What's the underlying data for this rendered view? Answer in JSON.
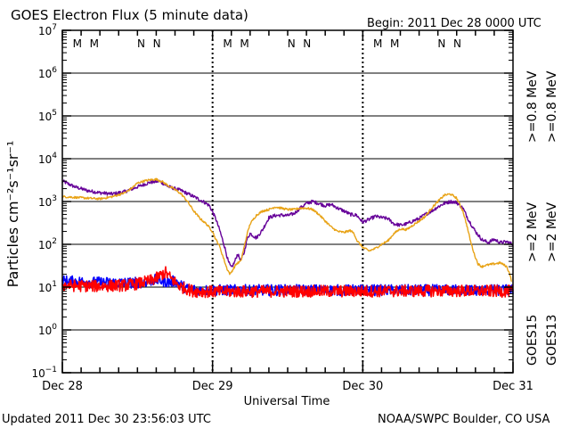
{
  "header": {
    "title": "GOES Electron Flux (5 minute data)",
    "begin": "Begin: 2011 Dec 28 0000 UTC"
  },
  "footer": {
    "updated": "Updated 2011 Dec 30 23:56:03 UTC",
    "credit": "NOAA/SWPC Boulder, CO USA"
  },
  "colors": {
    "goes13_gt2": "#ff0000",
    "goes15_gt2": "#0000ff",
    "goes13_gt08": "#e8a317",
    "goes15_gt08": "#660099",
    "marker_m": "#ff0000",
    "marker_n": "#0000ff"
  },
  "chart_data": {
    "type": "line",
    "title": "GOES Electron Flux (5 minute data)",
    "xlabel": "Universal Time",
    "ylabel": "Particles cm⁻²s⁻¹sr⁻¹",
    "y_scale": "log",
    "ylim": [
      0.1,
      10000000
    ],
    "y_ticks": [
      {
        "value": 0.1,
        "base": "10",
        "exp": "−1"
      },
      {
        "value": 1,
        "base": "10",
        "exp": "0"
      },
      {
        "value": 10,
        "base": "10",
        "exp": "1"
      },
      {
        "value": 100,
        "base": "10",
        "exp": "2"
      },
      {
        "value": 1000,
        "base": "10",
        "exp": "3"
      },
      {
        "value": 10000,
        "base": "10",
        "exp": "4"
      },
      {
        "value": 100000,
        "base": "10",
        "exp": "5"
      },
      {
        "value": 1000000,
        "base": "10",
        "exp": "6"
      },
      {
        "value": 10000000,
        "base": "10",
        "exp": "7"
      }
    ],
    "xlim_hours": [
      0,
      72
    ],
    "x_ticks": [
      {
        "hour": 0,
        "label": "Dec 28"
      },
      {
        "hour": 24,
        "label": "Dec 29"
      },
      {
        "hour": 48,
        "label": "Dec 30"
      },
      {
        "hour": 72,
        "label": "Dec 31"
      }
    ],
    "threshold": 1000,
    "day_markers": [
      {
        "hour": 2.4,
        "label": "M",
        "kind": "m"
      },
      {
        "hour": 5.1,
        "label": "M",
        "kind": "m"
      },
      {
        "hour": 12.6,
        "label": "N",
        "kind": "n"
      },
      {
        "hour": 15.1,
        "label": "N",
        "kind": "n"
      },
      {
        "hour": 26.4,
        "label": "M",
        "kind": "m"
      },
      {
        "hour": 29.1,
        "label": "M",
        "kind": "m"
      },
      {
        "hour": 36.6,
        "label": "N",
        "kind": "n"
      },
      {
        "hour": 39.1,
        "label": "N",
        "kind": "n"
      },
      {
        "hour": 50.4,
        "label": "M",
        "kind": "m"
      },
      {
        "hour": 53.1,
        "label": "M",
        "kind": "m"
      },
      {
        "hour": 60.6,
        "label": "N",
        "kind": "n"
      },
      {
        "hour": 63.1,
        "label": "N",
        "kind": "n"
      }
    ],
    "legend": [
      {
        "label": ">=0.8 MeV",
        "color_key": "goes15_gt08"
      },
      {
        "label": ">=0.8 MeV",
        "color_key": "goes13_gt08"
      },
      {
        "label": ">=2 MeV",
        "color_key": "goes15_gt2"
      },
      {
        "label": ">=2 MeV",
        "color_key": "goes13_gt2"
      },
      {
        "label": "GOES15",
        "color_key": ""
      },
      {
        "label": "GOES13",
        "color_key": ""
      }
    ],
    "series": [
      {
        "name": "GOES15 >=0.8 MeV",
        "color_key": "goes15_gt08",
        "noise": 0.04,
        "points": [
          [
            0,
            3000
          ],
          [
            2,
            2200
          ],
          [
            4,
            1800
          ],
          [
            6,
            1600
          ],
          [
            8,
            1500
          ],
          [
            10,
            1700
          ],
          [
            12,
            2200
          ],
          [
            14,
            2800
          ],
          [
            15.5,
            3000
          ],
          [
            17,
            2200
          ],
          [
            19,
            1800
          ],
          [
            21,
            1300
          ],
          [
            22.5,
            1000
          ],
          [
            23.5,
            800
          ],
          [
            24.5,
            400
          ],
          [
            25.2,
            200
          ],
          [
            26,
            80
          ],
          [
            26.5,
            40
          ],
          [
            27,
            28
          ],
          [
            27.5,
            38
          ],
          [
            28,
            60
          ],
          [
            28.5,
            42
          ],
          [
            29,
            60
          ],
          [
            29.5,
            130
          ],
          [
            30,
            180
          ],
          [
            31,
            140
          ],
          [
            32,
            220
          ],
          [
            33,
            420
          ],
          [
            34,
            470
          ],
          [
            35,
            480
          ],
          [
            36,
            470
          ],
          [
            37,
            520
          ],
          [
            38,
            700
          ],
          [
            39,
            900
          ],
          [
            40,
            1000
          ],
          [
            41,
            900
          ],
          [
            42,
            800
          ],
          [
            43,
            850
          ],
          [
            44,
            700
          ],
          [
            45,
            600
          ],
          [
            46,
            500
          ],
          [
            47,
            480
          ],
          [
            48,
            330
          ],
          [
            49,
            380
          ],
          [
            50,
            450
          ],
          [
            51,
            420
          ],
          [
            52,
            400
          ],
          [
            53,
            300
          ],
          [
            54,
            280
          ],
          [
            55,
            300
          ],
          [
            56,
            350
          ],
          [
            57,
            400
          ],
          [
            58,
            500
          ],
          [
            59,
            600
          ],
          [
            60,
            750
          ],
          [
            61,
            900
          ],
          [
            62,
            1000
          ],
          [
            63,
            950
          ],
          [
            64,
            700
          ],
          [
            65,
            350
          ],
          [
            66,
            200
          ],
          [
            67,
            130
          ],
          [
            68,
            110
          ],
          [
            69,
            130
          ],
          [
            70,
            110
          ],
          [
            71,
            115
          ],
          [
            72,
            100
          ]
        ]
      },
      {
        "name": "GOES13 >=0.8 MeV",
        "color_key": "goes13_gt08",
        "noise": 0.025,
        "points": [
          [
            0,
            1300
          ],
          [
            2,
            1250
          ],
          [
            4,
            1200
          ],
          [
            6,
            1150
          ],
          [
            8,
            1300
          ],
          [
            10,
            1600
          ],
          [
            11,
            2000
          ],
          [
            12,
            2700
          ],
          [
            13,
            3000
          ],
          [
            14,
            3200
          ],
          [
            15,
            3300
          ],
          [
            16,
            2900
          ],
          [
            17,
            2300
          ],
          [
            18,
            1900
          ],
          [
            19,
            1500
          ],
          [
            20,
            1000
          ],
          [
            21,
            600
          ],
          [
            22,
            400
          ],
          [
            23,
            300
          ],
          [
            24,
            200
          ],
          [
            24.5,
            130
          ],
          [
            25,
            100
          ],
          [
            25.7,
            50
          ],
          [
            26.3,
            27
          ],
          [
            26.8,
            20
          ],
          [
            27.2,
            25
          ],
          [
            27.8,
            35
          ],
          [
            28.5,
            40
          ],
          [
            29,
            80
          ],
          [
            29.5,
            170
          ],
          [
            30,
            300
          ],
          [
            31,
            480
          ],
          [
            32,
            600
          ],
          [
            33,
            650
          ],
          [
            34,
            750
          ],
          [
            35,
            700
          ],
          [
            36,
            650
          ],
          [
            37,
            650
          ],
          [
            38,
            700
          ],
          [
            39,
            700
          ],
          [
            40,
            650
          ],
          [
            41,
            500
          ],
          [
            42,
            350
          ],
          [
            43,
            250
          ],
          [
            44,
            200
          ],
          [
            45,
            190
          ],
          [
            46,
            210
          ],
          [
            46.6,
            180
          ],
          [
            47.1,
            120
          ],
          [
            48,
            85
          ],
          [
            49,
            70
          ],
          [
            50,
            80
          ],
          [
            51,
            100
          ],
          [
            52,
            120
          ],
          [
            53,
            180
          ],
          [
            54,
            230
          ],
          [
            55,
            220
          ],
          [
            56,
            280
          ],
          [
            57,
            350
          ],
          [
            58,
            450
          ],
          [
            59,
            700
          ],
          [
            60,
            1000
          ],
          [
            61,
            1400
          ],
          [
            62,
            1500
          ],
          [
            63,
            1200
          ],
          [
            64,
            600
          ],
          [
            64.7,
            250
          ],
          [
            65.2,
            120
          ],
          [
            65.8,
            60
          ],
          [
            66.4,
            35
          ],
          [
            67,
            30
          ],
          [
            67.5,
            32
          ],
          [
            68,
            33
          ],
          [
            69,
            35
          ],
          [
            70,
            37
          ],
          [
            71,
            30
          ],
          [
            71.5,
            20
          ],
          [
            71.8,
            13
          ]
        ]
      },
      {
        "name": "GOES15 >=2 MeV",
        "color_key": "goes15_gt2",
        "noise": 0.13,
        "points": [
          [
            0,
            14
          ],
          [
            5,
            13
          ],
          [
            10,
            12.5
          ],
          [
            13,
            13
          ],
          [
            15,
            15
          ],
          [
            16,
            14
          ],
          [
            17,
            13
          ],
          [
            18,
            14
          ],
          [
            19,
            11
          ],
          [
            20,
            9
          ],
          [
            22,
            8.5
          ],
          [
            24,
            8.5
          ],
          [
            36,
            8.5
          ],
          [
            48,
            8.5
          ],
          [
            60,
            8.5
          ],
          [
            72,
            8.5
          ]
        ]
      },
      {
        "name": "GOES13 >=2 MeV",
        "color_key": "goes13_gt2",
        "noise": 0.14,
        "points": [
          [
            0,
            11
          ],
          [
            5,
            10.5
          ],
          [
            10,
            11
          ],
          [
            12,
            12
          ],
          [
            14,
            14
          ],
          [
            15,
            16
          ],
          [
            16,
            20
          ],
          [
            16.5,
            22
          ],
          [
            17,
            18
          ],
          [
            18,
            13
          ],
          [
            19,
            10
          ],
          [
            20,
            9
          ],
          [
            21,
            8
          ],
          [
            24,
            7.8
          ],
          [
            36,
            8
          ],
          [
            48,
            8
          ],
          [
            60,
            8.2
          ],
          [
            72,
            8
          ]
        ]
      }
    ]
  }
}
